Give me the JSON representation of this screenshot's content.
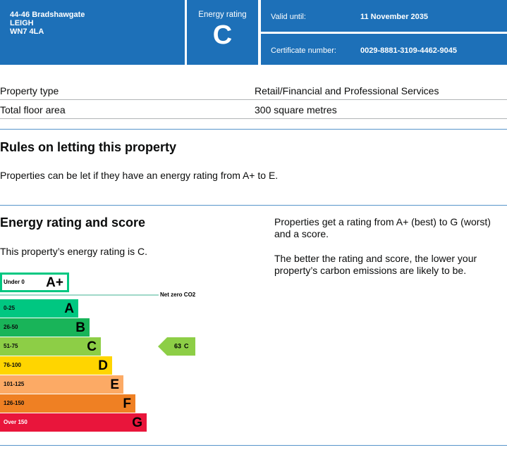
{
  "header": {
    "address": [
      "44-46 Bradshawgate",
      "LEIGH",
      "WN7 4LA"
    ],
    "energy_rating_label": "Energy rating",
    "energy_rating": "C",
    "valid_until_label": "Valid until:",
    "valid_until": "11 November 2035",
    "certificate_number_label": "Certificate number:",
    "certificate_number": "0029-8881-3109-4462-9045"
  },
  "table": {
    "rows": [
      [
        "Property type",
        "Retail/Financial and Professional Services"
      ],
      [
        "Total floor area",
        "300 square metres"
      ]
    ]
  },
  "letting": {
    "heading": "Rules on letting this property",
    "text": "Properties can be let if they have an energy rating from A+ to E."
  },
  "energy": {
    "heading": "Energy rating and score",
    "statement": "This property’s energy rating is C.",
    "notes": [
      "Properties get a rating from A+ (best) to G (worst) and a score.",
      "The better the rating and score, the lower your property’s carbon emissions are likely to be."
    ],
    "scale": {
      "top_band": {
        "range": "Under 0",
        "letter": "A+",
        "color": "#00c781"
      },
      "net_zero_label": "Net zero CO2",
      "bands": [
        {
          "range": "0-25",
          "letter": "A",
          "color": "#00c781"
        },
        {
          "range": "26-50",
          "letter": "B",
          "color": "#19b459"
        },
        {
          "range": "51-75",
          "letter": "C",
          "color": "#8dce46"
        },
        {
          "range": "76-100",
          "letter": "D",
          "color": "#ffd500"
        },
        {
          "range": "101-125",
          "letter": "E",
          "color": "#fcaa65"
        },
        {
          "range": "126-150",
          "letter": "F",
          "color": "#ef8023"
        },
        {
          "range": "Over 150",
          "letter": "G",
          "color": "#e9153b"
        }
      ],
      "current": {
        "score": 63,
        "letter": "C",
        "band": 2
      }
    }
  }
}
